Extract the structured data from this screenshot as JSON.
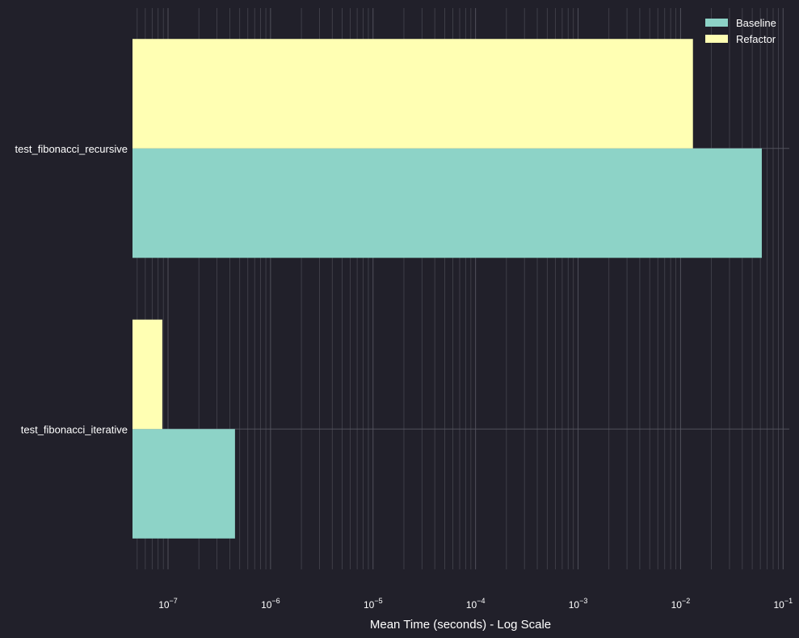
{
  "chart_data": {
    "type": "bar",
    "orientation": "horizontal",
    "xscale": "log",
    "xlabel": "Mean Time (seconds) - Log Scale",
    "xlim": [
      4.5e-08,
      0.115
    ],
    "grid": true,
    "legend_placement": "top-right",
    "categories": [
      "test_fibonacci_recursive",
      "test_fibonacci_iterative"
    ],
    "series": [
      {
        "name": "Baseline",
        "color": "#8dd3c7",
        "values": [
          0.062,
          4.5e-07
        ]
      },
      {
        "name": "Refactor",
        "color": "#ffffb3",
        "values": [
          0.0132,
          8.8e-08
        ]
      }
    ],
    "x_ticks": [
      {
        "value": 1e-07,
        "base": "10",
        "exp": "−7"
      },
      {
        "value": 1e-06,
        "base": "10",
        "exp": "−6"
      },
      {
        "value": 1e-05,
        "base": "10",
        "exp": "−5"
      },
      {
        "value": 0.0001,
        "base": "10",
        "exp": "−4"
      },
      {
        "value": 0.001,
        "base": "10",
        "exp": "−3"
      },
      {
        "value": 0.01,
        "base": "10",
        "exp": "−2"
      },
      {
        "value": 0.1,
        "base": "10",
        "exp": "−1"
      }
    ],
    "colors": {
      "background": "#21202a",
      "grid": "#555560",
      "text": "#ffffff"
    }
  }
}
